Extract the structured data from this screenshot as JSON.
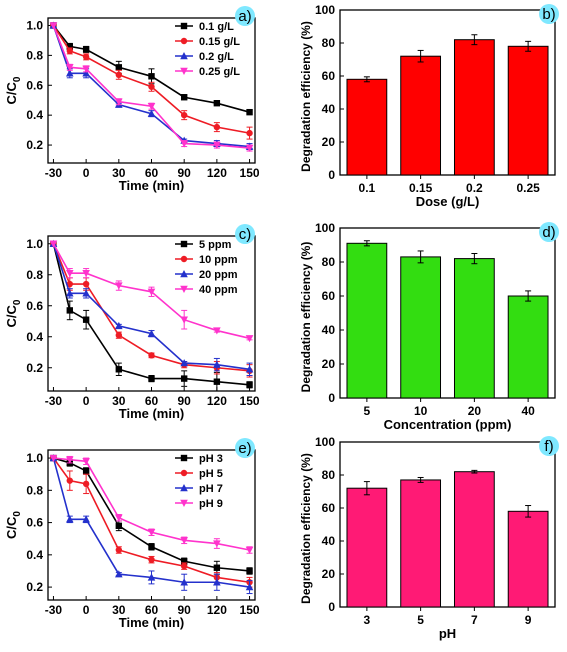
{
  "chart_data": [
    {
      "panel": "a)",
      "type": "line",
      "xlabel": "Time (min)",
      "ylabel": "C/C0",
      "x": [
        -30,
        -15,
        0,
        30,
        60,
        90,
        120,
        150
      ],
      "xticks": [
        -30,
        0,
        30,
        60,
        90,
        120,
        150
      ],
      "yticks": [
        0.2,
        0.4,
        0.6,
        0.8,
        1.0
      ],
      "xlim": [
        -35,
        155
      ],
      "ylim": [
        0.08,
        1.05
      ],
      "legend_position": "top-right",
      "grid": false,
      "series": [
        {
          "name": "0.1 g/L",
          "color": "#000000",
          "marker": "square",
          "values": [
            1.0,
            0.86,
            0.84,
            0.72,
            0.66,
            0.52,
            0.48,
            0.42
          ],
          "errors": [
            0,
            0.02,
            0.02,
            0.04,
            0.05,
            0.015,
            0.01,
            0.015
          ]
        },
        {
          "name": "0.15 g/L",
          "color": "#ee1c25",
          "marker": "circle",
          "values": [
            1.0,
            0.83,
            0.79,
            0.67,
            0.59,
            0.4,
            0.32,
            0.28
          ],
          "errors": [
            0,
            0.02,
            0.02,
            0.03,
            0.03,
            0.03,
            0.03,
            0.04
          ]
        },
        {
          "name": "0.2 g/L",
          "color": "#2431cc",
          "marker": "triangle-up",
          "values": [
            1.0,
            0.68,
            0.68,
            0.47,
            0.41,
            0.23,
            0.21,
            0.19
          ],
          "errors": [
            0,
            0.03,
            0.03,
            0.01,
            0.02,
            0.01,
            0.02,
            0.02
          ]
        },
        {
          "name": "0.25 g/L",
          "color": "#ff33cc",
          "marker": "triangle-down",
          "values": [
            1.0,
            0.72,
            0.71,
            0.49,
            0.46,
            0.21,
            0.2,
            0.18
          ],
          "errors": [
            0,
            0.02,
            0.02,
            0.02,
            0.02,
            0.02,
            0.02,
            0.02
          ]
        }
      ]
    },
    {
      "panel": "b)",
      "type": "bar",
      "xlabel": "Dose (g/L)",
      "ylabel": "Degradation efficiency (%)",
      "categories": [
        "0.1",
        "0.15",
        "0.2",
        "0.25"
      ],
      "values": [
        58,
        72,
        82,
        78
      ],
      "errors": [
        1.5,
        3.5,
        3,
        3
      ],
      "bar_color": "#ff0000",
      "ylim": [
        0,
        100
      ],
      "yticks": [
        0,
        20,
        40,
        60,
        80,
        100
      ]
    },
    {
      "panel": "c)",
      "type": "line",
      "xlabel": "Time (min)",
      "ylabel": "C/C0",
      "x": [
        -30,
        -15,
        0,
        30,
        60,
        90,
        120,
        150
      ],
      "xticks": [
        -30,
        0,
        30,
        60,
        90,
        120,
        150
      ],
      "yticks": [
        0.2,
        0.4,
        0.6,
        0.8,
        1.0
      ],
      "xlim": [
        -35,
        155
      ],
      "ylim": [
        0.05,
        1.05
      ],
      "legend_position": "top-right",
      "grid": false,
      "series": [
        {
          "name": "5 ppm",
          "color": "#000000",
          "marker": "square",
          "values": [
            1.0,
            0.57,
            0.51,
            0.19,
            0.13,
            0.13,
            0.11,
            0.09
          ],
          "errors": [
            0,
            0.06,
            0.06,
            0.04,
            0.02,
            0.05,
            0.06,
            0.02
          ]
        },
        {
          "name": "10 ppm",
          "color": "#ee1c25",
          "marker": "circle",
          "values": [
            1.0,
            0.74,
            0.74,
            0.41,
            0.28,
            0.22,
            0.2,
            0.18
          ],
          "errors": [
            0,
            0.04,
            0.04,
            0.02,
            0.015,
            0.02,
            0.04,
            0.04
          ]
        },
        {
          "name": "20 ppm",
          "color": "#2431cc",
          "marker": "triangle-up",
          "values": [
            1.0,
            0.68,
            0.68,
            0.47,
            0.42,
            0.23,
            0.22,
            0.19
          ],
          "errors": [
            0,
            0.03,
            0.03,
            0.01,
            0.02,
            0.01,
            0.04,
            0.04
          ]
        },
        {
          "name": "40 ppm",
          "color": "#ff33cc",
          "marker": "triangle-down",
          "values": [
            1.0,
            0.81,
            0.81,
            0.73,
            0.69,
            0.51,
            0.44,
            0.39
          ],
          "errors": [
            0,
            0.03,
            0.03,
            0.03,
            0.03,
            0.06,
            0.01,
            0.01
          ]
        }
      ]
    },
    {
      "panel": "d)",
      "type": "bar",
      "xlabel": "Concentration (ppm)",
      "ylabel": "Degradation efficiency (%)",
      "categories": [
        "5",
        "10",
        "20",
        "40"
      ],
      "values": [
        91,
        83,
        82,
        60
      ],
      "errors": [
        1.5,
        3.5,
        3,
        3
      ],
      "bar_color": "#33dd11",
      "ylim": [
        0,
        100
      ],
      "yticks": [
        0,
        20,
        40,
        60,
        80,
        100
      ]
    },
    {
      "panel": "e)",
      "type": "line",
      "xlabel": "Time (min)",
      "ylabel": "C/C0",
      "x": [
        -30,
        -15,
        0,
        30,
        60,
        90,
        120,
        150
      ],
      "xticks": [
        -30,
        0,
        30,
        60,
        90,
        120,
        150
      ],
      "yticks": [
        0.2,
        0.4,
        0.6,
        0.8,
        1.0
      ],
      "xlim": [
        -35,
        155
      ],
      "ylim": [
        0.12,
        1.05
      ],
      "legend_position": "top-right",
      "grid": false,
      "series": [
        {
          "name": "pH 3",
          "color": "#000000",
          "marker": "square",
          "values": [
            1.0,
            0.97,
            0.92,
            0.58,
            0.45,
            0.36,
            0.32,
            0.3
          ],
          "errors": [
            0,
            0.02,
            0.02,
            0.03,
            0.02,
            0.02,
            0.04,
            0.02
          ]
        },
        {
          "name": "pH 5",
          "color": "#ee1c25",
          "marker": "circle",
          "values": [
            1.0,
            0.86,
            0.84,
            0.43,
            0.37,
            0.33,
            0.26,
            0.23
          ],
          "errors": [
            0,
            0.06,
            0.06,
            0.02,
            0.02,
            0.02,
            0.03,
            0.03
          ]
        },
        {
          "name": "pH 7",
          "color": "#2431cc",
          "marker": "triangle-up",
          "values": [
            1.0,
            0.62,
            0.62,
            0.28,
            0.26,
            0.23,
            0.23,
            0.2
          ],
          "errors": [
            0,
            0.02,
            0.02,
            0.01,
            0.04,
            0.05,
            0.05,
            0.04
          ]
        },
        {
          "name": "pH 9",
          "color": "#ff33cc",
          "marker": "triangle-down",
          "values": [
            1.0,
            0.99,
            0.98,
            0.63,
            0.54,
            0.49,
            0.47,
            0.43
          ],
          "errors": [
            0,
            0.02,
            0.02,
            0.02,
            0.02,
            0.02,
            0.03,
            0.02
          ]
        }
      ]
    },
    {
      "panel": "f)",
      "type": "bar",
      "xlabel": "pH",
      "ylabel": "Degradation efficiency (%)",
      "categories": [
        "3",
        "5",
        "7",
        "9"
      ],
      "values": [
        72,
        77,
        82,
        58
      ],
      "errors": [
        4,
        1.5,
        0.8,
        3.5
      ],
      "bar_color": "#ff1a75",
      "ylim": [
        0,
        100
      ],
      "yticks": [
        0,
        20,
        40,
        60,
        80,
        100
      ]
    }
  ],
  "colors": {
    "panel_badge_fill": "#7fe8ff",
    "axis": "#000000"
  }
}
